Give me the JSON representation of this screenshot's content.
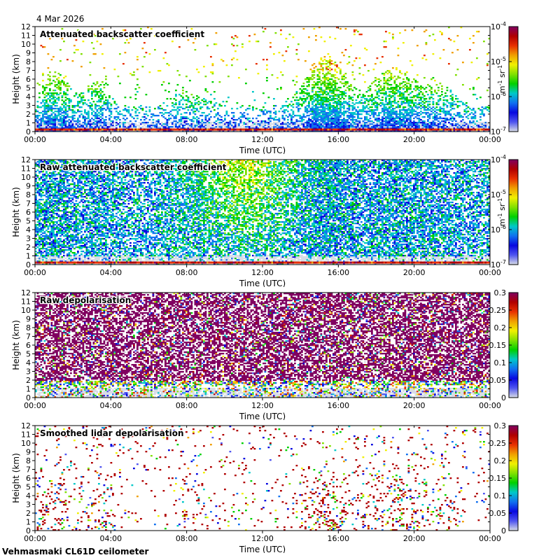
{
  "date": "4 Mar 2026",
  "footer": "Vehmasmaki CL61D ceilometer",
  "x_axis_label": "Time (UTC)",
  "y_axis_label": "Height (km)",
  "x_ticks": [
    "00:00",
    "04:00",
    "08:00",
    "12:00",
    "16:00",
    "20:00",
    "00:00"
  ],
  "y_ticks": [
    "0",
    "1",
    "2",
    "3",
    "4",
    "5",
    "6",
    "7",
    "8",
    "9",
    "10",
    "11",
    "12"
  ],
  "colormap": [
    "#ffffff",
    "#d8dde6",
    "#4f54f0",
    "#0808e0",
    "#1070f0",
    "#00c8c8",
    "#00d000",
    "#80e000",
    "#f0f000",
    "#f0a000",
    "#e83000",
    "#b00000",
    "#800060"
  ],
  "chart_data": [
    {
      "type": "heatmap",
      "title": "Attenuated backscatter coefficient",
      "xlabel": "Time (UTC)",
      "ylabel": "Height (km)",
      "xlim": [
        0,
        24
      ],
      "ylim": [
        0,
        12
      ],
      "colorbar": {
        "scale": "log",
        "range": [
          1e-07,
          0.0001
        ],
        "ticks": [
          "10-7",
          "10-6",
          "10-5",
          "10-4"
        ],
        "unit_label": "m-1 sr-1"
      },
      "pattern": "attbsc"
    },
    {
      "type": "heatmap",
      "title": "Raw attenuated backscatter coefficient",
      "xlabel": "Time (UTC)",
      "ylabel": "Height (km)",
      "xlim": [
        0,
        24
      ],
      "ylim": [
        0,
        12
      ],
      "colorbar": {
        "scale": "log",
        "range": [
          1e-07,
          0.0001
        ],
        "ticks": [
          "10-7",
          "10-6",
          "10-5",
          "10-4"
        ],
        "unit_label": "m-1 sr-1"
      },
      "pattern": "rawbsc"
    },
    {
      "type": "heatmap",
      "title": "Raw depolarisation",
      "xlabel": "Time (UTC)",
      "ylabel": "Height (km)",
      "xlim": [
        0,
        24
      ],
      "ylim": [
        0,
        12
      ],
      "colorbar": {
        "scale": "linear",
        "range": [
          0,
          0.3
        ],
        "ticks": [
          "0",
          "0.05",
          "0.1",
          "0.15",
          "0.2",
          "0.25",
          "0.3"
        ]
      },
      "pattern": "rawdep"
    },
    {
      "type": "heatmap",
      "title": "Smoothed lidar depolarisation",
      "xlabel": "Time (UTC)",
      "ylabel": "Height (km)",
      "xlim": [
        0,
        24
      ],
      "ylim": [
        0,
        12
      ],
      "colorbar": {
        "scale": "linear",
        "range": [
          0,
          0.3
        ],
        "ticks": [
          "0",
          "0.05",
          "0.1",
          "0.15",
          "0.2",
          "0.25",
          "0.3"
        ]
      },
      "pattern": "smdep"
    }
  ]
}
